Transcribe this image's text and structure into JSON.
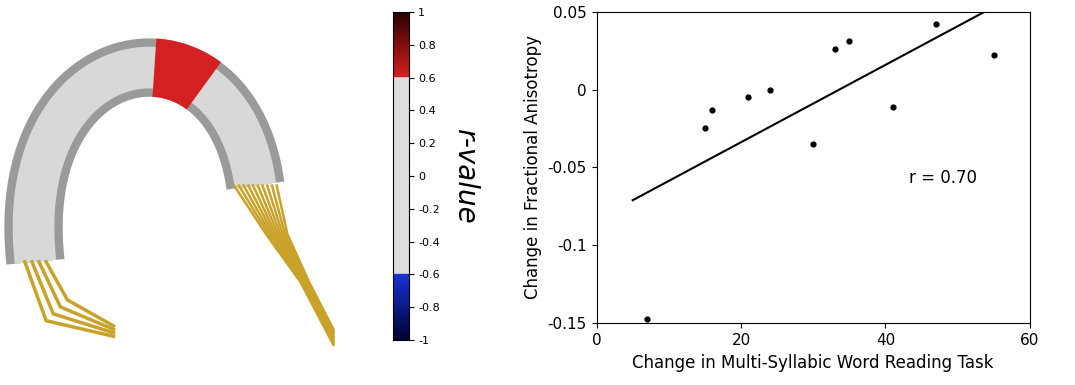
{
  "chart_data": [
    {
      "type": "colorbar",
      "label": "r-value",
      "range": [
        -1,
        1
      ],
      "ticks": [
        -1,
        -0.8,
        -0.6,
        -0.4,
        -0.2,
        0,
        0.2,
        0.4,
        0.6,
        0.8,
        1
      ],
      "threshold": 0.6
    },
    {
      "type": "scatter",
      "x_label": "Change in Multi-Syllabic Word Reading Task",
      "y_label": "Change in Fractional Anisotropy",
      "x": [
        7,
        15,
        16,
        21,
        24,
        30,
        33,
        35,
        41,
        47,
        55
      ],
      "values": [
        -0.147,
        -0.025,
        -0.013,
        -0.005,
        0.0,
        -0.035,
        0.026,
        0.031,
        -0.011,
        0.042,
        0.022
      ],
      "color": "#000000",
      "marker": "o",
      "fit_line": {
        "x": [
          5,
          55
        ],
        "y": [
          -0.071,
          0.053
        ]
      },
      "annotation": "r = 0.70",
      "xlim": [
        0,
        60
      ],
      "xticks": [
        0,
        20,
        40,
        60
      ],
      "ylim": [
        -0.15,
        0.05
      ],
      "yticks": [
        -0.15,
        -0.1,
        -0.05,
        0,
        0.05
      ],
      "grid": false
    }
  ]
}
